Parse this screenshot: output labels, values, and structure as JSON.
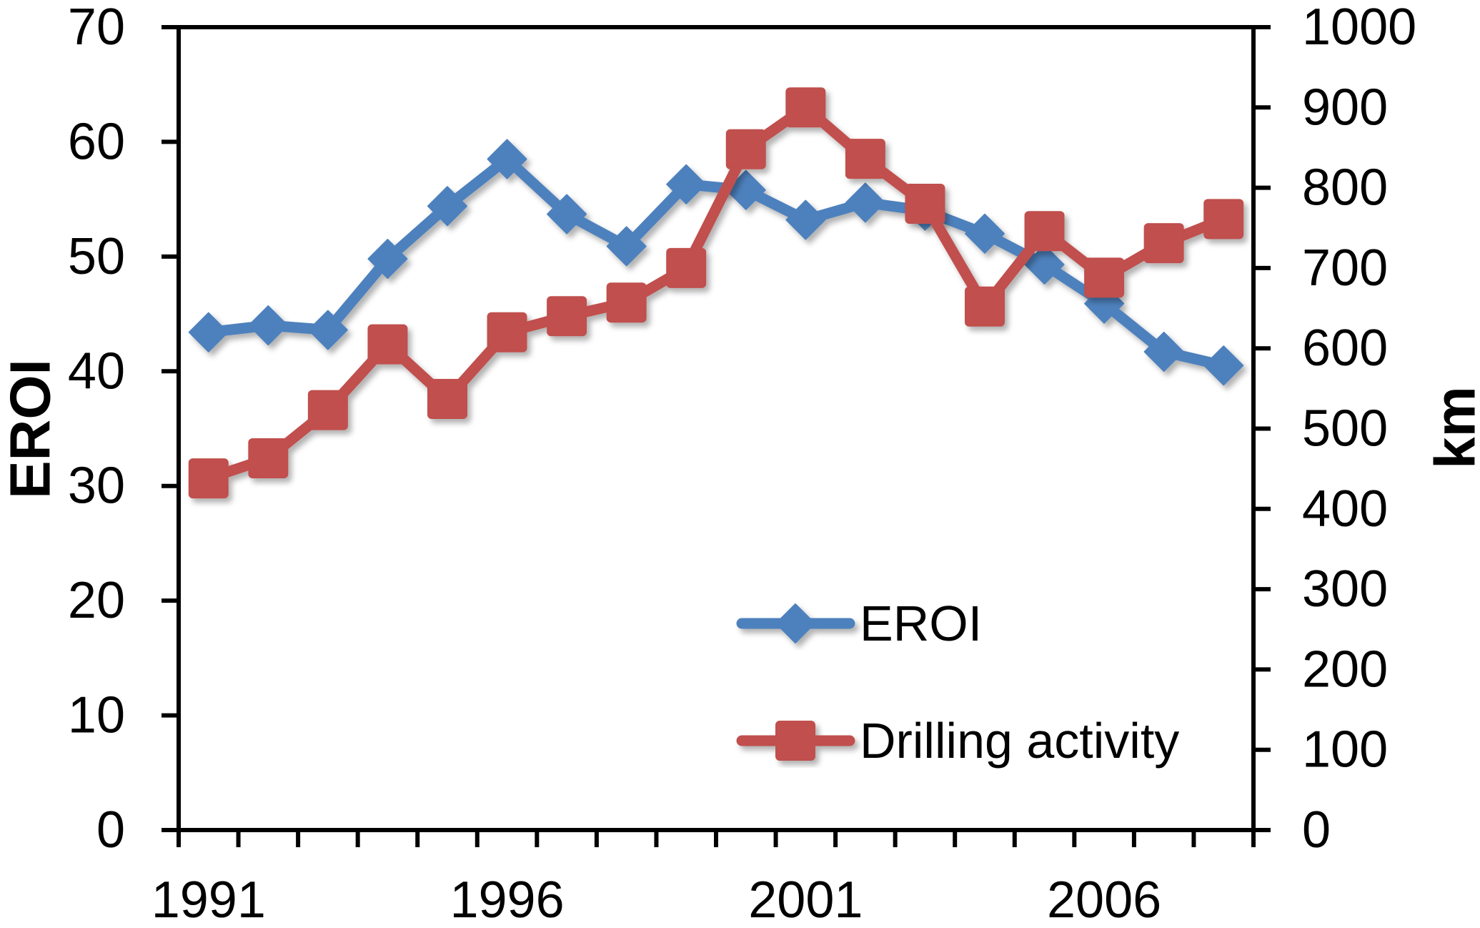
{
  "chart_data": {
    "type": "line",
    "title": "",
    "categories": [
      1991,
      1992,
      1993,
      1994,
      1995,
      1996,
      1997,
      1998,
      1999,
      2000,
      2001,
      2002,
      2003,
      2004,
      2005,
      2006,
      2007,
      2008
    ],
    "x_axis": {
      "tick_label_years": [
        1991,
        1996,
        2001,
        2006
      ],
      "ticks_between_categories": true
    },
    "left_axis": {
      "label": "EROI",
      "min": 0,
      "max": 70,
      "step": 10,
      "tick_labels": [
        "0",
        "10",
        "20",
        "30",
        "40",
        "50",
        "60",
        "70"
      ]
    },
    "right_axis": {
      "label": "km",
      "min": 0,
      "max": 1000,
      "step": 100,
      "tick_labels": [
        "0",
        "100",
        "200",
        "300",
        "400",
        "500",
        "600",
        "700",
        "800",
        "900",
        "1000"
      ]
    },
    "series": [
      {
        "name": "EROI",
        "axis": "left",
        "marker": "diamond",
        "color": "#4E81BD",
        "values": [
          43.4,
          44.0,
          43.6,
          49.8,
          54.4,
          58.5,
          53.7,
          50.9,
          56.3,
          55.8,
          53.2,
          54.7,
          54.0,
          52.0,
          49.3,
          45.9,
          41.7,
          40.5
        ]
      },
      {
        "name": "Drilling activity",
        "axis": "right",
        "marker": "square",
        "color": "#C0504D",
        "values": [
          438,
          463,
          523,
          605,
          537,
          620,
          640,
          657,
          700,
          848,
          900,
          836,
          780,
          652,
          746,
          688,
          731,
          761
        ]
      }
    ],
    "legend": {
      "position": "inside-bottom-center",
      "entries": [
        "EROI",
        "Drilling activity"
      ]
    },
    "grid": false,
    "plot_border": true
  },
  "colors": {
    "background": "#FFFFFF",
    "axis": "#000000",
    "eroi_series": "#4E81BD",
    "drilling_series": "#C0504D"
  }
}
